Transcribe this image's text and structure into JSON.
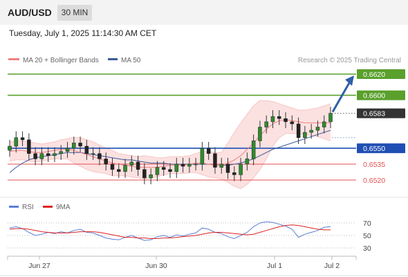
{
  "header": {
    "pair": "AUD/USD",
    "timeframe": "30 MIN",
    "datetime": "Tuesday, July 1, 2025 11:14:30 AM CET"
  },
  "legend": {
    "ma20_label": "MA 20 + Bollinger Bands",
    "ma50_label": "MA 50",
    "ma20_color": "#f08080",
    "ma50_color": "#3a5a9a",
    "credit": "Research © 2025 Trading Central"
  },
  "rsi_legend": {
    "rsi_label": "RSI",
    "ma9_label": "9MA",
    "rsi_color": "#5b7fd6",
    "ma9_color": "#e02020"
  },
  "chart_data": [
    {
      "type": "candlestick",
      "title": "AUD/USD 30 MIN",
      "x_tick_labels": [
        "Jun 27",
        "Jun 30",
        "Jul 1",
        "Jul 2"
      ],
      "current_price": {
        "value": "0.6583",
        "color": "#333333"
      },
      "levels": [
        {
          "value": "0.6620",
          "kind": "resistance",
          "color": "#5aa02c"
        },
        {
          "value": "0.6600",
          "kind": "resistance",
          "color": "#5aa02c"
        },
        {
          "value": "0.6550",
          "kind": "pivot",
          "color": "#1f4fb4"
        },
        {
          "value": "0.6535",
          "kind": "support",
          "color": "#e05050"
        },
        {
          "value": "0.6520",
          "kind": "support",
          "color": "#e05050"
        }
      ],
      "price_range": [
        0.6505,
        0.6625
      ],
      "projection": {
        "from": 0.6583,
        "to": 0.662,
        "color": "#2f5fa8"
      },
      "closes": [
        0.6552,
        0.656,
        0.6558,
        0.6545,
        0.654,
        0.6545,
        0.6543,
        0.6545,
        0.6547,
        0.655,
        0.6555,
        0.6552,
        0.6545,
        0.6545,
        0.654,
        0.6535,
        0.653,
        0.6528,
        0.6534,
        0.6537,
        0.653,
        0.6522,
        0.6525,
        0.6532,
        0.653,
        0.6528,
        0.6535,
        0.6533,
        0.6535,
        0.6535,
        0.655,
        0.6545,
        0.6532,
        0.6535,
        0.6527,
        0.6525,
        0.6535,
        0.654,
        0.6557,
        0.657,
        0.6575,
        0.658,
        0.6578,
        0.6575,
        0.6573,
        0.656,
        0.6565,
        0.6567,
        0.657,
        0.6575,
        0.6583
      ],
      "ma20": [
        0.6547,
        0.6548,
        0.6548,
        0.6547,
        0.6546,
        0.6546,
        0.6547,
        0.6548,
        0.6549,
        0.6549,
        0.6548,
        0.6546,
        0.6544,
        0.6542,
        0.654,
        0.6538,
        0.6536,
        0.6535,
        0.6534,
        0.6533,
        0.6532,
        0.6532,
        0.6532,
        0.6532,
        0.6533,
        0.6534,
        0.6534,
        0.6534,
        0.6535,
        0.6536,
        0.6536,
        0.6535,
        0.6534,
        0.6534,
        0.6536,
        0.6539,
        0.6543,
        0.6549,
        0.6555,
        0.6562,
        0.6568,
        0.6573,
        0.6576,
        0.6577,
        0.6576,
        0.6575,
        0.6574,
        0.6574,
        0.6574,
        0.6574,
        0.6574
      ],
      "bb_upper": [
        0.6556,
        0.6557,
        0.6557,
        0.6556,
        0.6555,
        0.6554,
        0.6555,
        0.6556,
        0.6558,
        0.6559,
        0.656,
        0.656,
        0.6558,
        0.6556,
        0.6553,
        0.655,
        0.6548,
        0.6545,
        0.6544,
        0.6543,
        0.6542,
        0.6543,
        0.6542,
        0.6541,
        0.6541,
        0.6542,
        0.6542,
        0.6542,
        0.6543,
        0.6545,
        0.6547,
        0.6547,
        0.6546,
        0.6546,
        0.6555,
        0.6565,
        0.6574,
        0.6582,
        0.659,
        0.6595,
        0.6595,
        0.6594,
        0.6592,
        0.659,
        0.6588,
        0.6586,
        0.6586,
        0.6587,
        0.6588,
        0.659,
        0.6592
      ],
      "bb_lower": [
        0.6538,
        0.6539,
        0.6539,
        0.6538,
        0.6537,
        0.6538,
        0.6539,
        0.654,
        0.654,
        0.654,
        0.6536,
        0.6533,
        0.653,
        0.6528,
        0.6527,
        0.6526,
        0.6524,
        0.6524,
        0.6524,
        0.6523,
        0.6522,
        0.6521,
        0.6522,
        0.6523,
        0.6525,
        0.6526,
        0.6526,
        0.6526,
        0.6527,
        0.6527,
        0.6525,
        0.6523,
        0.6522,
        0.6521,
        0.6518,
        0.6514,
        0.6512,
        0.6516,
        0.6522,
        0.653,
        0.654,
        0.6552,
        0.656,
        0.6564,
        0.6564,
        0.6564,
        0.6563,
        0.6562,
        0.6561,
        0.6559,
        0.6557
      ],
      "ma50": [
        0.6527,
        0.6532,
        0.6536,
        0.6539,
        0.6541,
        0.6542,
        0.6543,
        0.6544,
        0.6545,
        0.6546,
        0.6546,
        0.6546,
        0.6545,
        0.6544,
        0.6543,
        0.6542,
        0.6541,
        0.654,
        0.6539,
        0.6539,
        0.6538,
        0.6537,
        0.6536,
        0.6536,
        0.6536,
        0.6535,
        0.6535,
        0.6535,
        0.6535,
        0.6535,
        0.6535,
        0.6535,
        0.6534,
        0.6534,
        0.6534,
        0.6535,
        0.6536,
        0.6538,
        0.654,
        0.6543,
        0.6546,
        0.6549,
        0.6551,
        0.6553,
        0.6555,
        0.6557,
        0.6559,
        0.6561,
        0.6563,
        0.6565,
        0.6567
      ]
    },
    {
      "type": "line",
      "title": "RSI",
      "ylim": [
        20,
        80
      ],
      "y_ticks": [
        "70",
        "50",
        "30"
      ],
      "series": [
        {
          "name": "RSI",
          "values": [
            62,
            64,
            61,
            55,
            50,
            52,
            55,
            53,
            56,
            54,
            58,
            60,
            55,
            54,
            50,
            46,
            44,
            43,
            47,
            50,
            46,
            42,
            43,
            48,
            50,
            47,
            51,
            49,
            52,
            54,
            62,
            60,
            55,
            53,
            48,
            45,
            50,
            55,
            64,
            70,
            72,
            71,
            68,
            65,
            60,
            47,
            52,
            55,
            58,
            63,
            64
          ]
        },
        {
          "name": "9MA",
          "values": [
            60,
            61,
            61,
            60,
            58,
            56,
            55,
            54,
            54,
            54,
            55,
            56,
            56,
            56,
            55,
            53,
            51,
            49,
            47,
            47,
            46,
            46,
            45,
            45,
            46,
            46,
            47,
            48,
            49,
            50,
            52,
            54,
            55,
            55,
            54,
            53,
            52,
            51,
            52,
            55,
            58,
            61,
            64,
            66,
            67,
            66,
            64,
            62,
            60,
            59,
            59
          ]
        }
      ]
    }
  ]
}
